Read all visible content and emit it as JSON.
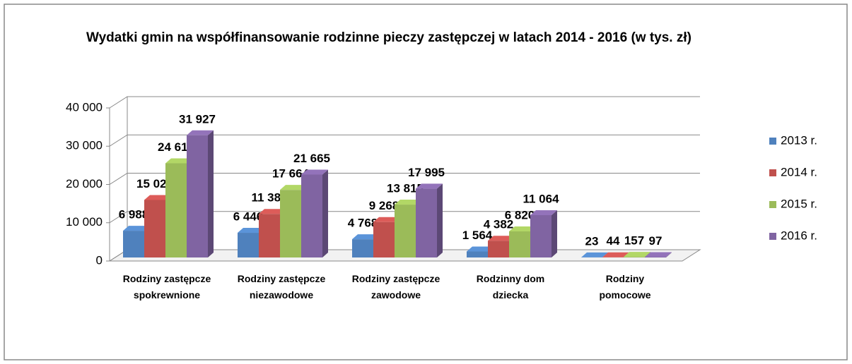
{
  "chart_data": {
    "type": "bar3d",
    "title": "Wydatki gmin na współfinansowanie  rodzinne pieczy zastępczej w latach 2014 - 2016 (w tys. zł)",
    "categories": [
      "Rodziny zastępcze spokrewnione",
      "Rodziny zastępcze niezawodowe",
      "Rodziny zastępcze zawodowe",
      "Rodzinny dom dziecka",
      "Rodziny pomocowe"
    ],
    "series": [
      {
        "name": "2013 r.",
        "color": "#4f81bd",
        "values": [
          6988,
          6446,
          4768,
          1564,
          23
        ],
        "value_labels": [
          "6 988",
          "6 446",
          "4 768",
          "1 564",
          "23"
        ]
      },
      {
        "name": "2014 r.",
        "color": "#c0504d",
        "values": [
          15029,
          11382,
          9268,
          4382,
          44
        ],
        "value_labels": [
          "15 029",
          "11 382",
          "9 268",
          "4 382",
          "44"
        ]
      },
      {
        "name": "2015 r.",
        "color": "#9bbb59",
        "values": [
          24610,
          17664,
          13815,
          6820,
          157
        ],
        "value_labels": [
          "24 610",
          "17 664",
          "13 815",
          "6 820",
          "157"
        ]
      },
      {
        "name": "2016 r.",
        "color": "#8064a2",
        "values": [
          31927,
          21665,
          17995,
          11064,
          97
        ],
        "value_labels": [
          "31 927",
          "21 665",
          "17 995",
          "11 064",
          "97"
        ]
      }
    ],
    "ylim": [
      0,
      40000
    ],
    "yticks": [
      0,
      {
        "value": 10000,
        "label": "10 000"
      },
      {
        "value": 20000,
        "label": "20 000"
      },
      {
        "value": 30000,
        "label": "30 000"
      },
      {
        "value": 40000,
        "label": "40 000"
      }
    ],
    "grid": true,
    "legend": "right"
  }
}
